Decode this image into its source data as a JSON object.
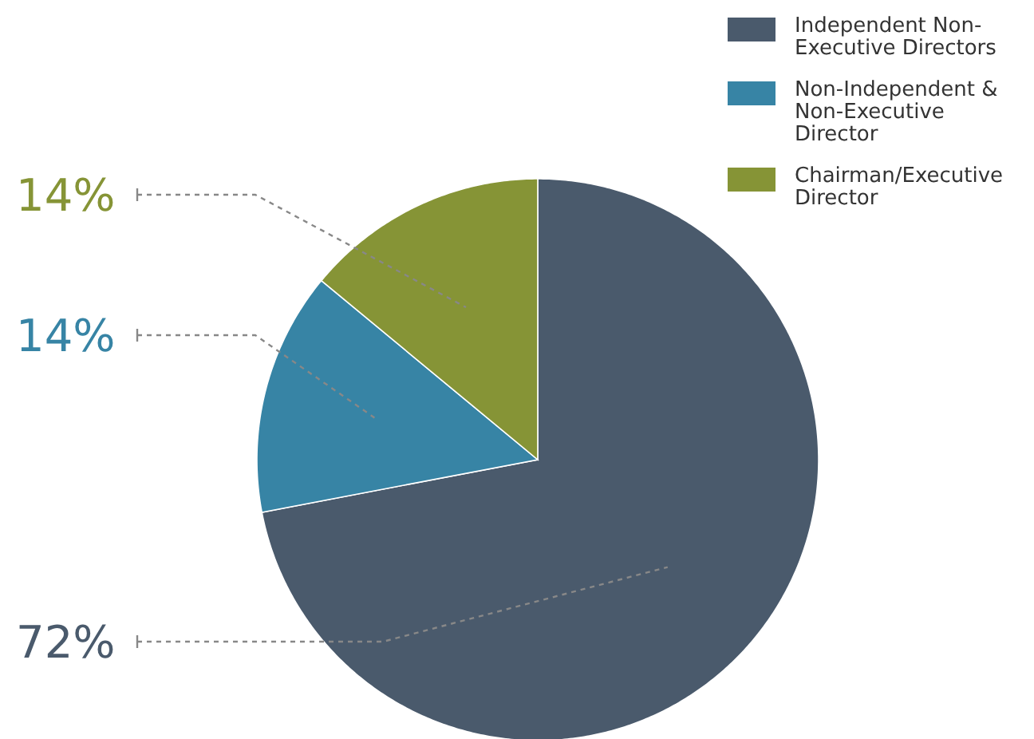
{
  "chart_data": {
    "type": "pie",
    "categories": [
      "Independent Non-Executive Directors",
      "Non-Independent & Non-Executive Director",
      "Chairman/Executive Director"
    ],
    "values": [
      72,
      14,
      14
    ],
    "colors": [
      "#4a5a6c",
      "#3784a5",
      "#869436"
    ],
    "data_labels": true,
    "value_labels": [
      "72%",
      "14%",
      "14%"
    ],
    "legend": "top right"
  }
}
